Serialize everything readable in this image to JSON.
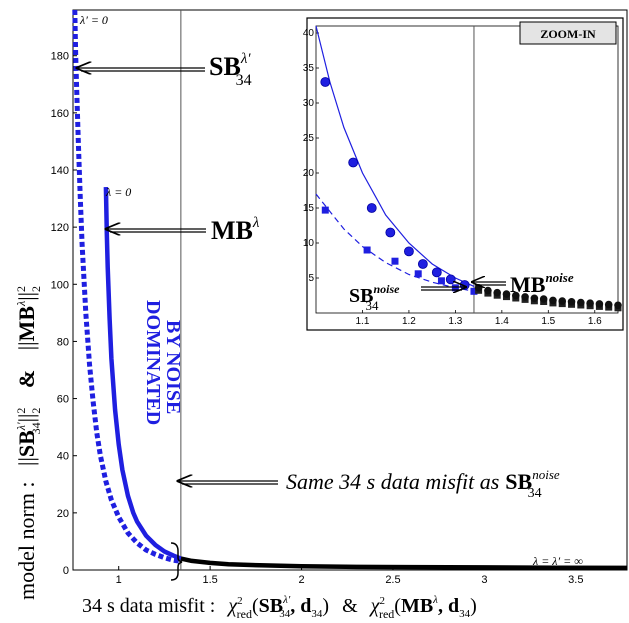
{
  "chart_data": {
    "type": "line",
    "xlabel": {
      "prefix": "34 s data misfit :",
      "chi": "χ",
      "sq": "2",
      "red": "red",
      "term1_open": "(",
      "term1_sb": "SB",
      "term1_sup": "λ′",
      "term1_sub": "34",
      "term1_rest": ", d",
      "term1_dsub": "34",
      "term1_close": ")",
      "amp": "&",
      "term2_open": "(",
      "term2_mb": "MB",
      "term2_sup": "λ",
      "term2_rest": ", d",
      "term2_dsub": "34",
      "term2_close": ")"
    },
    "ylabel": {
      "prefix": "model norm :",
      "sb_open": "||",
      "sb": "SB",
      "sb_sup": "λ′",
      "sb_sub": "34",
      "sb_close": "||",
      "sb_pow": "2",
      "sb_norm": "2",
      "amp": "&",
      "mb_open": "||",
      "mb": "MB",
      "mb_sup": "λ",
      "mb_close": "||",
      "mb_pow": "2",
      "mb_norm": "2"
    },
    "xlim": [
      0.75,
      3.78
    ],
    "ylim": [
      0,
      196
    ],
    "x_ticks": [
      1,
      1.5,
      2,
      2.5,
      3,
      3.5
    ],
    "x_tick_labels": [
      "1",
      "1.5",
      "2",
      "2.5",
      "3",
      "3.5"
    ],
    "y_ticks": [
      0,
      20,
      40,
      60,
      80,
      100,
      120,
      140,
      160,
      180
    ],
    "y_tick_labels": [
      "0",
      "20",
      "40",
      "60",
      "80",
      "100",
      "120",
      "140",
      "160",
      "180"
    ],
    "vline_x": 1.34,
    "series": [
      {
        "kind": "SB",
        "style": "dotted",
        "color": "#1f1fe0",
        "x": [
          0.76,
          0.765,
          0.77,
          0.78,
          0.79,
          0.8,
          0.82,
          0.84,
          0.86,
          0.88,
          0.9,
          0.93,
          0.96,
          1.0,
          1.05,
          1.1,
          1.15,
          1.2,
          1.25,
          1.3,
          1.34
        ],
        "y": [
          196,
          180,
          168,
          148,
          130,
          114,
          90,
          72,
          59,
          48,
          40,
          31,
          24.5,
          18.5,
          13,
          9.5,
          7,
          5.5,
          4.3,
          3.4,
          3
        ]
      },
      {
        "kind": "MB",
        "style": "solid",
        "color": "#1f1fe0",
        "x": [
          0.93,
          0.935,
          0.94,
          0.95,
          0.96,
          0.98,
          1.0,
          1.02,
          1.05,
          1.08,
          1.1,
          1.15,
          1.2,
          1.25,
          1.3,
          1.34
        ],
        "y": [
          134,
          118,
          106,
          88,
          74,
          56,
          44,
          35,
          26,
          20,
          17,
          12,
          8.8,
          6.5,
          5,
          4
        ]
      },
      {
        "kind": "tail",
        "style": "solid",
        "color": "#000000",
        "x": [
          1.34,
          1.4,
          1.5,
          1.6,
          1.8,
          2.0,
          2.3,
          2.6,
          3.0,
          3.4,
          3.78
        ],
        "y": [
          4,
          3.2,
          2.5,
          2,
          1.6,
          1.3,
          1.1,
          1.0,
          0.9,
          0.8,
          0.75
        ]
      }
    ],
    "annotations": {
      "lam_prime_zero": "λ′ = 0",
      "lam_zero": "λ = 0",
      "sb_label": "SB",
      "sb_label_sup": "λ′",
      "sb_label_sub": "34",
      "mb_label": "MB",
      "mb_label_sup": "λ",
      "dominated_line1": "DOMINATED",
      "dominated_line2": "BY NOISE",
      "same_misfit_text": "Same 34 s data misfit as",
      "same_misfit_sb": "SB",
      "same_misfit_sup": "noise",
      "same_misfit_sub": "34",
      "lam_inf": "λ = λ′ = ∞"
    },
    "inset": {
      "title": "ZOOM-IN",
      "xlim": [
        1.0,
        1.65
      ],
      "ylim": [
        0,
        41
      ],
      "x_ticks": [
        1.1,
        1.2,
        1.3,
        1.4,
        1.5,
        1.6
      ],
      "x_tick_labels": [
        "1.1",
        "1.2",
        "1.3",
        "1.4",
        "1.5",
        "1.6"
      ],
      "y_ticks": [
        5,
        10,
        15,
        20,
        25,
        30,
        35,
        40
      ],
      "y_tick_labels": [
        "5",
        "10",
        "15",
        "20",
        "25",
        "30",
        "35",
        "40"
      ],
      "vline_x": 1.34,
      "mb_curve": {
        "x": [
          1.0,
          1.03,
          1.06,
          1.1,
          1.15,
          1.2,
          1.25,
          1.3,
          1.34
        ],
        "y": [
          41,
          33,
          26.5,
          20,
          14,
          10,
          7,
          5,
          3.8
        ]
      },
      "sb_curve": {
        "x": [
          1.0,
          1.03,
          1.06,
          1.1,
          1.15,
          1.2,
          1.25,
          1.3,
          1.34
        ],
        "y": [
          17,
          14.5,
          12,
          9.5,
          7.2,
          5.5,
          4.4,
          3.6,
          3.1
        ]
      },
      "mb_markers": {
        "x": [
          1.02,
          1.08,
          1.12,
          1.16,
          1.2,
          1.23,
          1.26,
          1.29,
          1.32
        ],
        "y": [
          33,
          21.5,
          15,
          11.5,
          8.8,
          7,
          5.8,
          4.8,
          4.0
        ]
      },
      "sb_markers": {
        "x": [
          1.02,
          1.11,
          1.17,
          1.22,
          1.27,
          1.3,
          1.34
        ],
        "y": [
          14.7,
          9,
          7.4,
          5.6,
          4.6,
          3.6,
          3.1
        ]
      },
      "tail_markers": {
        "x": [
          1.35,
          1.37,
          1.39,
          1.41,
          1.43,
          1.45,
          1.47,
          1.49,
          1.51,
          1.53,
          1.55,
          1.57,
          1.59,
          1.61,
          1.63,
          1.65
        ],
        "y": [
          3.6,
          3.2,
          2.9,
          2.7,
          2.5,
          2.3,
          2.1,
          2.0,
          1.8,
          1.7,
          1.6,
          1.5,
          1.4,
          1.3,
          1.2,
          1.1
        ]
      },
      "mb_noise_label": "MB",
      "mb_noise_sup": "noise",
      "sb_noise_label": "SB",
      "sb_noise_sup": "noise",
      "sb_noise_sub": "34"
    }
  }
}
